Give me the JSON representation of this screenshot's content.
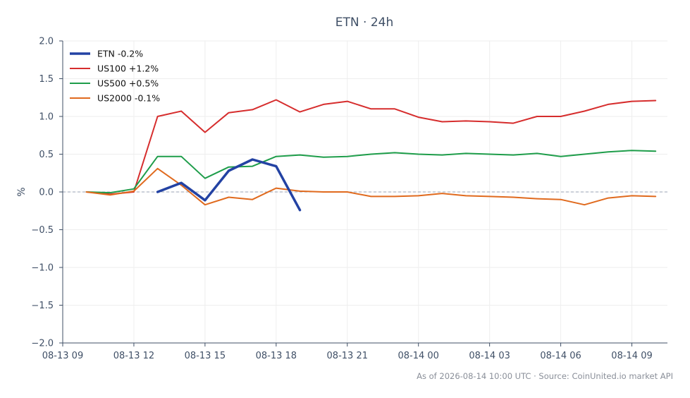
{
  "chart_data": {
    "type": "line",
    "title": "ETN · 24h",
    "ylabel": "%",
    "xlabel": "",
    "ylim": [
      -2.0,
      2.0
    ],
    "yticks": [
      "2.0",
      "1.5",
      "1.0",
      "0.5",
      "0.0",
      "−0.5",
      "−1.0",
      "−1.5",
      "−2.0"
    ],
    "ytick_values": [
      2.0,
      1.5,
      1.0,
      0.5,
      0.0,
      -0.5,
      -1.0,
      -1.5,
      -2.0
    ],
    "xlim": [
      0,
      25.5
    ],
    "xticks": [
      "08-13 09",
      "08-13 12",
      "08-13 15",
      "08-13 18",
      "08-13 21",
      "08-14 00",
      "08-14 03",
      "08-14 06",
      "08-14 09"
    ],
    "xtick_values": [
      0,
      3,
      6,
      9,
      12,
      15,
      18,
      21,
      24
    ],
    "x_unit": "hours since 08-13 09:00",
    "grid": true,
    "zero_line": true,
    "legend_position": "top-left",
    "series": [
      {
        "name": "ETN -0.2%",
        "color": "#2342a3",
        "width": 3.5,
        "x": [
          4,
          5,
          6,
          7,
          8,
          9,
          10
        ],
        "values": [
          0.0,
          0.12,
          -0.11,
          0.28,
          0.43,
          0.34,
          -0.24
        ]
      },
      {
        "name": "US100 +1.2%",
        "color": "#d62d2d",
        "width": 2,
        "x": [
          1,
          2,
          3,
          4,
          5,
          6,
          7,
          8,
          9,
          10,
          11,
          12,
          13,
          14,
          15,
          16,
          17,
          18,
          19,
          20,
          21,
          22,
          23,
          24,
          25
        ],
        "values": [
          0.0,
          -0.03,
          0.0,
          1.0,
          1.07,
          0.79,
          1.05,
          1.09,
          1.22,
          1.06,
          1.16,
          1.2,
          1.1,
          1.1,
          0.99,
          0.93,
          0.94,
          0.93,
          0.91,
          1.0,
          1.0,
          1.07,
          1.16,
          1.2,
          1.21
        ]
      },
      {
        "name": "US500 +0.5%",
        "color": "#1e9d4a",
        "width": 2,
        "x": [
          1,
          2,
          3,
          4,
          5,
          6,
          7,
          8,
          9,
          10,
          11,
          12,
          13,
          14,
          15,
          16,
          17,
          18,
          19,
          20,
          21,
          22,
          23,
          24,
          25
        ],
        "values": [
          0.0,
          -0.01,
          0.04,
          0.47,
          0.47,
          0.18,
          0.33,
          0.34,
          0.47,
          0.49,
          0.46,
          0.47,
          0.5,
          0.52,
          0.5,
          0.49,
          0.51,
          0.5,
          0.49,
          0.51,
          0.47,
          0.5,
          0.53,
          0.55,
          0.54
        ]
      },
      {
        "name": "US2000 -0.1%",
        "color": "#e06a1e",
        "width": 2,
        "x": [
          1,
          2,
          3,
          4,
          5,
          6,
          7,
          8,
          9,
          10,
          11,
          12,
          13,
          14,
          15,
          16,
          17,
          18,
          19,
          20,
          21,
          22,
          23,
          24,
          25
        ],
        "values": [
          0.0,
          -0.04,
          0.01,
          0.31,
          0.09,
          -0.17,
          -0.07,
          -0.1,
          0.05,
          0.01,
          0.0,
          0.0,
          -0.06,
          -0.06,
          -0.05,
          -0.02,
          -0.05,
          -0.06,
          -0.07,
          -0.09,
          -0.1,
          -0.17,
          -0.08,
          -0.05,
          -0.06
        ]
      }
    ],
    "footer": "As of 2026-08-14 10:00 UTC · Source: CoinUnited.io market API"
  }
}
